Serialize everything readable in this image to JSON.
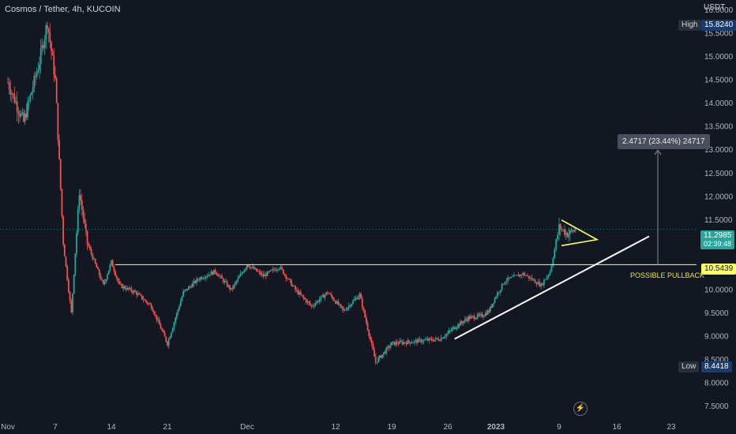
{
  "header": {
    "title": "Cosmos / Tether, 4h, KUCOIN",
    "currency": "USDT"
  },
  "markers": {
    "high_label": "High",
    "high_value": "15.8240",
    "low_label": "Low",
    "low_value": "8.4418",
    "last_price": "11.2985",
    "countdown": "02:39:48",
    "level_value": "10.5439"
  },
  "annotations": {
    "measure": "2.4717 (23.44%) 24717",
    "pullback": "POSSIBLE PULLBACK"
  },
  "colors": {
    "up": "#26a69a",
    "down": "#ef5350",
    "level": "#ffff66",
    "trend": "#ffffff",
    "background": "#131722"
  },
  "icons": {
    "replay": "lightning-icon"
  },
  "chart_data": {
    "type": "candlestick",
    "title": "Cosmos / Tether, 4h, KUCOIN",
    "y_axis": {
      "unit": "USDT",
      "ylim": [
        7.3,
        16.05
      ],
      "ticks": [
        "16.0000",
        "15.5000",
        "15.0000",
        "14.5000",
        "14.0000",
        "13.5000",
        "13.0000",
        "12.5000",
        "12.0000",
        "11.5000",
        "11.0000",
        "10.5000",
        "10.0000",
        "9.5000",
        "9.0000",
        "8.5000",
        "8.0000",
        "7.5000"
      ]
    },
    "x_axis": {
      "ticks": [
        "Nov",
        "7",
        "14",
        "21",
        "Dec",
        "12",
        "19",
        "26",
        "2023",
        "9",
        "16",
        "23"
      ]
    },
    "price_path": [
      [
        "Nov",
        14.45
      ],
      [
        "3",
        13.6
      ],
      [
        "5",
        14.9
      ],
      [
        "6",
        15.75
      ],
      [
        "7",
        14.5
      ],
      [
        "8",
        11.0
      ],
      [
        "9",
        9.5
      ],
      [
        "10",
        12.1
      ],
      [
        "11",
        11.0
      ],
      [
        "13",
        10.1
      ],
      [
        "14",
        10.6
      ],
      [
        "15",
        10.1
      ],
      [
        "17",
        9.95
      ],
      [
        "19",
        9.65
      ],
      [
        "21",
        8.85
      ],
      [
        "23",
        9.95
      ],
      [
        "25",
        10.25
      ],
      [
        "27",
        10.4
      ],
      [
        "29",
        10.0
      ],
      [
        "Dec",
        10.55
      ],
      [
        "3",
        10.3
      ],
      [
        "5",
        10.5
      ],
      [
        "7",
        10.0
      ],
      [
        "9",
        9.65
      ],
      [
        "11",
        9.95
      ],
      [
        "13",
        9.55
      ],
      [
        "15",
        9.9
      ],
      [
        "17",
        8.45
      ],
      [
        "19",
        8.85
      ],
      [
        "22",
        8.9
      ],
      [
        "25",
        8.95
      ],
      [
        "27",
        9.2
      ],
      [
        "29",
        9.4
      ],
      [
        "31",
        9.45
      ],
      [
        "2023",
        9.55
      ],
      [
        "3",
        10.2
      ],
      [
        "5",
        10.35
      ],
      [
        "7",
        10.1
      ],
      [
        "8",
        10.4
      ],
      [
        "9",
        11.35
      ],
      [
        "10",
        11.2
      ],
      [
        "11",
        11.3
      ]
    ],
    "high": 15.824,
    "low": 8.4418,
    "last": 11.2985,
    "horizontal_level": 10.5439,
    "trendline": {
      "from": [
        "27",
        8.95
      ],
      "to": [
        "22",
        11.15
      ]
    },
    "triangle": {
      "upper": [
        11.5,
        11.08
      ],
      "lower": [
        10.95,
        11.08
      ],
      "x_range": [
        "9",
        "12"
      ]
    },
    "measure": {
      "from": 10.5439,
      "to": 13.0,
      "label": "2.4717 (23.44%) 24717"
    },
    "grid": false
  }
}
